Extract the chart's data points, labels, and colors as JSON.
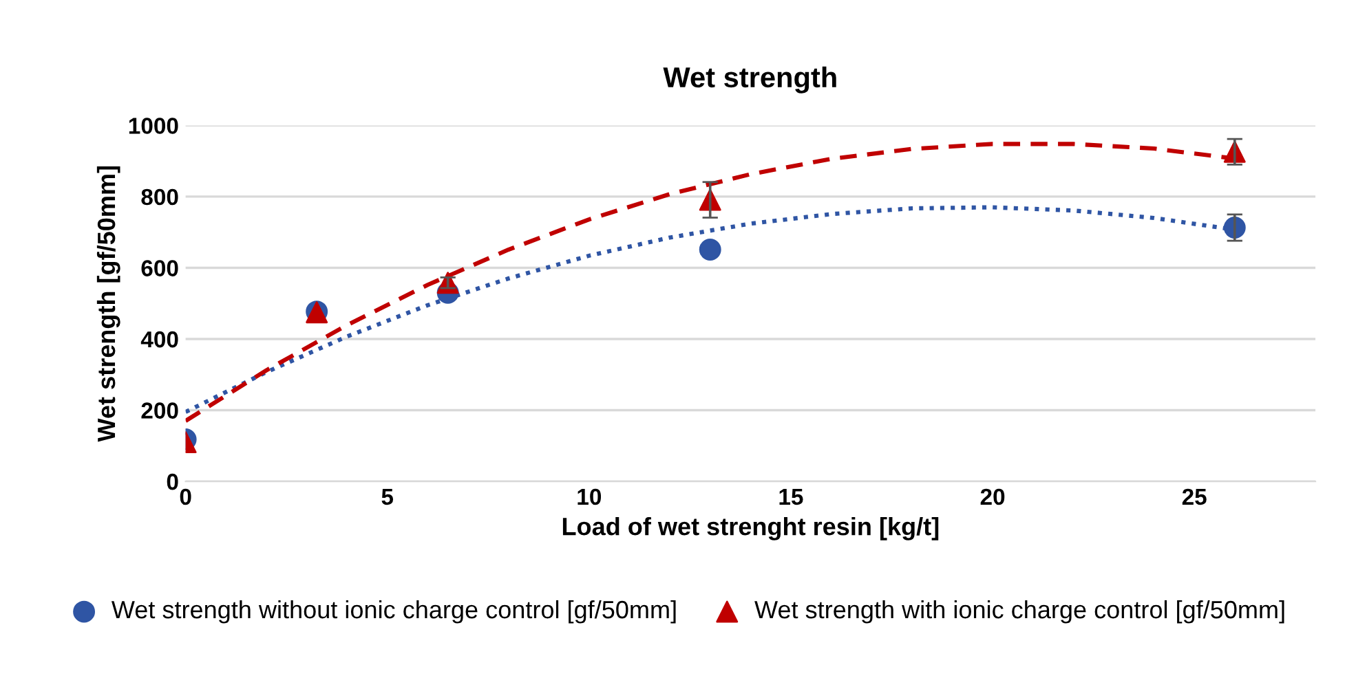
{
  "chart_data": {
    "type": "scatter",
    "title": "Wet strength",
    "xlabel": "Load of wet strenght resin [kg/t]",
    "ylabel": "Wet strength [gf/50mm]",
    "xlim": [
      0,
      28
    ],
    "xticks": [
      0,
      5,
      10,
      15,
      20,
      25
    ],
    "ylim": [
      0,
      1000
    ],
    "yticks": [
      0,
      200,
      400,
      600,
      800,
      1000
    ],
    "grid": "y",
    "legend": "bottom",
    "series": [
      {
        "name": "Wet strength without ionic charge control [gf/50mm]",
        "marker": "circle",
        "color": "#2f55a4",
        "x": [
          0,
          3.25,
          6.5,
          13,
          26
        ],
        "values": [
          118,
          477,
          530,
          651,
          713
        ],
        "errors": [
          null,
          null,
          null,
          null,
          37
        ]
      },
      {
        "name": "Wet strength with ionic charge control [gf/50mm]",
        "marker": "triangle",
        "color": "#c00000",
        "x": [
          0,
          3.25,
          6.5,
          13,
          26
        ],
        "values": [
          110,
          475,
          558,
          791,
          926
        ],
        "errors": [
          null,
          null,
          15,
          50,
          36
        ]
      },
      {
        "type": "line",
        "marker": "none",
        "line_style": "dotted",
        "color": "#2f55a4",
        "x": [
          0,
          2,
          4,
          6,
          8,
          10,
          12,
          14,
          16,
          18,
          20,
          22,
          24,
          26
        ],
        "values": [
          195,
          307,
          407,
          495,
          570,
          634,
          685,
          724,
          751,
          767,
          770,
          761,
          740,
          707
        ]
      },
      {
        "type": "line",
        "marker": "none",
        "line_style": "dashed",
        "color": "#c00000",
        "x": [
          0,
          2,
          4,
          6,
          8,
          10,
          12,
          14,
          16,
          18,
          20,
          22,
          24,
          26
        ],
        "values": [
          170,
          312,
          439,
          552,
          651,
          736,
          807,
          863,
          906,
          934,
          948,
          948,
          935,
          907
        ]
      }
    ]
  }
}
